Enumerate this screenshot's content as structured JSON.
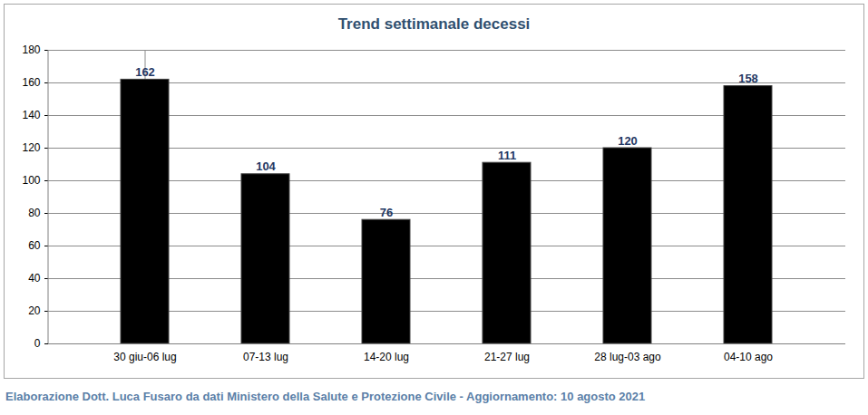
{
  "chart_data": {
    "type": "bar",
    "title": "Trend settimanale decessi",
    "caption": "Elaborazione Dott. Luca Fusaro da dati Ministero della Salute e Protezione Civile - Aggiornamento: 10 agosto 2021",
    "categories": [
      "30 giu-06 lug",
      "07-13 lug",
      "14-20 lug",
      "21-27 lug",
      "28 lug-03 ago",
      "04-10 ago"
    ],
    "values": [
      162,
      104,
      76,
      111,
      120,
      158
    ],
    "color": "#000000",
    "ylim": [
      0,
      180
    ],
    "yticks": [
      0,
      20,
      40,
      60,
      80,
      100,
      120,
      140,
      160,
      180
    ],
    "grid": true,
    "data_labels": true
  }
}
